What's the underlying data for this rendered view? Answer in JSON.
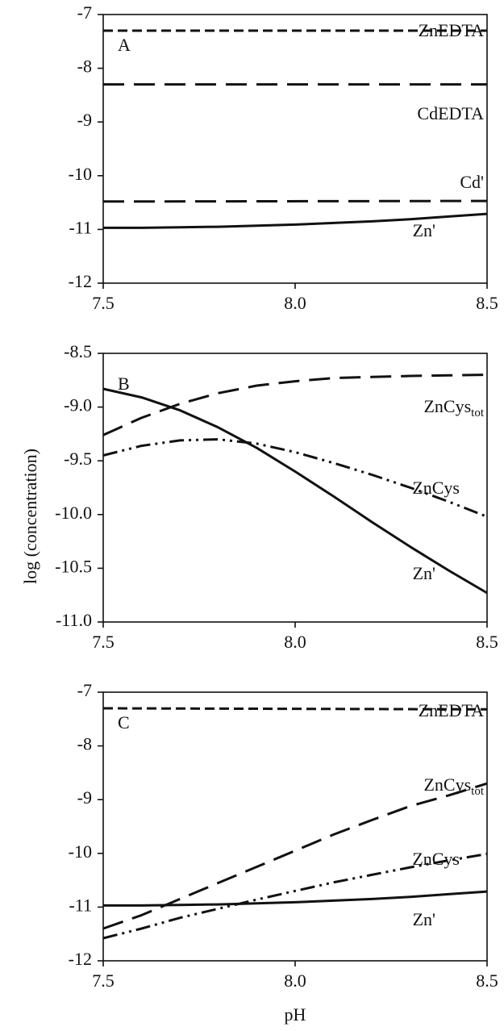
{
  "figure": {
    "ylabel": "log (concentration)",
    "xlabel": "pH"
  },
  "chart_data": [
    {
      "type": "line",
      "panel": "A",
      "xlim": [
        7.5,
        8.5
      ],
      "ylim": [
        -12,
        -7
      ],
      "xticks": [
        "7.5",
        "8.0",
        "8.5"
      ],
      "yticks": [
        "-7",
        "-8",
        "-9",
        "-10",
        "-11",
        "-12"
      ],
      "grid": false,
      "series": [
        {
          "name": "ZnEDTA",
          "style": "dashed",
          "x": [
            7.5,
            8.5
          ],
          "y": [
            -7.3,
            -7.3
          ]
        },
        {
          "name": "CdEDTA",
          "style": "long-dash",
          "x": [
            7.5,
            8.5
          ],
          "y": [
            -8.3,
            -8.3
          ]
        },
        {
          "name": "Cd'",
          "style": "long-dash",
          "x": [
            7.5,
            8.5
          ],
          "y": [
            -10.48,
            -10.47
          ]
        },
        {
          "name": "Zn'",
          "style": "solid",
          "x": [
            7.5,
            7.6,
            7.7,
            7.8,
            7.9,
            8.0,
            8.1,
            8.2,
            8.3,
            8.4,
            8.5
          ],
          "y": [
            -10.97,
            -10.97,
            -10.96,
            -10.95,
            -10.93,
            -10.91,
            -10.88,
            -10.85,
            -10.81,
            -10.76,
            -10.71
          ]
        }
      ]
    },
    {
      "type": "line",
      "panel": "B",
      "xlim": [
        7.5,
        8.5
      ],
      "ylim": [
        -11.0,
        -8.5
      ],
      "xticks": [
        "7.5",
        "8.0",
        "8.5"
      ],
      "yticks": [
        "-8.5",
        "-9.0",
        "-9.5",
        "-10.0",
        "-10.5",
        "-11.0"
      ],
      "grid": false,
      "series": [
        {
          "name": "ZnCys",
          "name_sub": "tot",
          "style": "long-dash",
          "x": [
            7.5,
            7.6,
            7.7,
            7.8,
            7.9,
            8.0,
            8.1,
            8.2,
            8.3,
            8.4,
            8.5
          ],
          "y": [
            -9.26,
            -9.1,
            -8.97,
            -8.87,
            -8.8,
            -8.76,
            -8.73,
            -8.72,
            -8.71,
            -8.705,
            -8.7
          ]
        },
        {
          "name": "ZnCys",
          "style": "dash-dot-dot",
          "x": [
            7.5,
            7.6,
            7.7,
            7.8,
            7.9,
            8.0,
            8.1,
            8.2,
            8.3,
            8.4,
            8.5
          ],
          "y": [
            -9.45,
            -9.36,
            -9.31,
            -9.3,
            -9.34,
            -9.42,
            -9.52,
            -9.63,
            -9.75,
            -9.88,
            -10.02
          ]
        },
        {
          "name": "Zn'",
          "style": "solid",
          "x": [
            7.5,
            7.6,
            7.7,
            7.8,
            7.9,
            8.0,
            8.1,
            8.2,
            8.3,
            8.4,
            8.5
          ],
          "y": [
            -8.83,
            -8.91,
            -9.03,
            -9.19,
            -9.38,
            -9.6,
            -9.83,
            -10.07,
            -10.3,
            -10.52,
            -10.73
          ]
        }
      ]
    },
    {
      "type": "line",
      "panel": "C",
      "xlim": [
        7.5,
        8.5
      ],
      "ylim": [
        -12,
        -7
      ],
      "xticks": [
        "7.5",
        "8.0",
        "8.5"
      ],
      "yticks": [
        "-7",
        "-8",
        "-9",
        "-10",
        "-11",
        "-12"
      ],
      "grid": false,
      "series": [
        {
          "name": "ZnEDTA",
          "style": "dashed",
          "x": [
            7.5,
            8.5
          ],
          "y": [
            -7.3,
            -7.32
          ]
        },
        {
          "name": "ZnCys",
          "name_sub": "tot",
          "style": "long-dash",
          "x": [
            7.5,
            7.6,
            7.7,
            7.8,
            7.9,
            8.0,
            8.1,
            8.2,
            8.3,
            8.4,
            8.5
          ],
          "y": [
            -11.4,
            -11.15,
            -10.85,
            -10.55,
            -10.25,
            -9.95,
            -9.65,
            -9.38,
            -9.12,
            -8.92,
            -8.7
          ]
        },
        {
          "name": "ZnCys",
          "style": "dash-dot-dot",
          "x": [
            7.5,
            7.6,
            7.7,
            7.8,
            7.9,
            8.0,
            8.1,
            8.2,
            8.3,
            8.4,
            8.5
          ],
          "y": [
            -11.58,
            -11.4,
            -11.2,
            -11.03,
            -10.86,
            -10.7,
            -10.54,
            -10.4,
            -10.26,
            -10.13,
            -10.01
          ]
        },
        {
          "name": "Zn'",
          "style": "solid",
          "x": [
            7.5,
            7.6,
            7.7,
            7.8,
            7.9,
            8.0,
            8.1,
            8.2,
            8.3,
            8.4,
            8.5
          ],
          "y": [
            -10.97,
            -10.97,
            -10.96,
            -10.95,
            -10.93,
            -10.91,
            -10.88,
            -10.85,
            -10.81,
            -10.76,
            -10.71
          ]
        }
      ]
    }
  ]
}
